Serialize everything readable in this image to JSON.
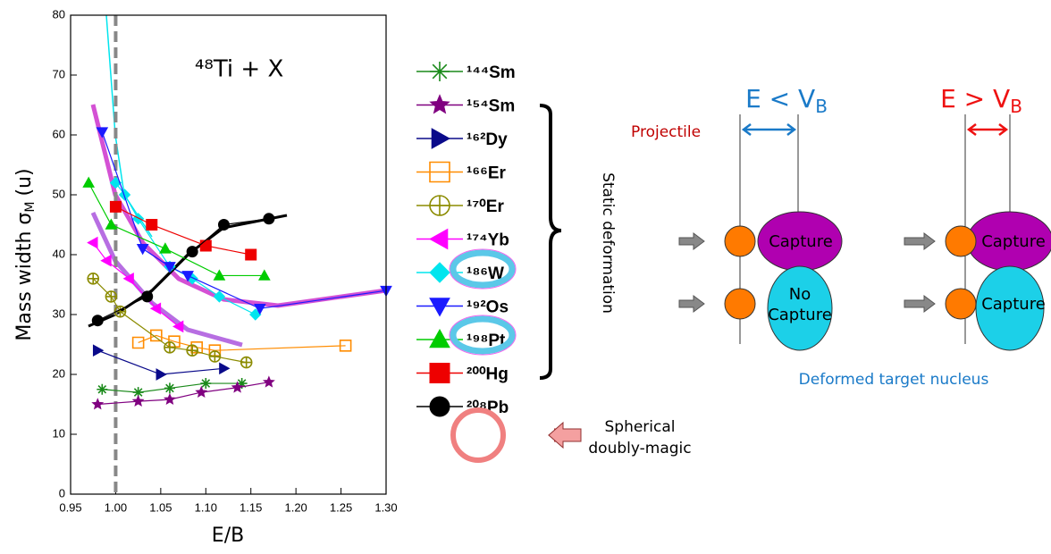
{
  "chart_data": {
    "type": "scatter",
    "title": "⁴⁸Ti + X",
    "xlabel": "E/B",
    "ylabel": {
      "text": "Mass width σ",
      "sub": "M",
      "unit": "(u)"
    },
    "xlim": [
      0.95,
      1.3
    ],
    "ylim": [
      0,
      80
    ],
    "xticks": [
      {
        "value": 0.95,
        "label": "0.95"
      },
      {
        "value": 1.0,
        "label": "1.00"
      },
      1.05,
      {
        "value": 1.1,
        "label": "1.10"
      },
      1.15,
      {
        "value": 1.2,
        "label": "1.20"
      },
      1.25,
      {
        "value": 1.3,
        "label": "1.30"
      }
    ],
    "yticks": [
      0,
      10,
      20,
      30,
      40,
      50,
      60,
      70,
      80
    ],
    "vline": 1.0,
    "series": [
      {
        "name": "¹⁴⁴Sm",
        "color": "#1a8a1a",
        "marker": "asterisk",
        "x": [
          0.985,
          1.025,
          1.06,
          1.1,
          1.14
        ],
        "values": [
          17.5,
          17,
          17.7,
          18.5,
          18.5
        ]
      },
      {
        "name": "¹⁵⁴Sm",
        "color": "#800080",
        "marker": "star",
        "x": [
          0.98,
          1.025,
          1.06,
          1.095,
          1.135,
          1.17
        ],
        "values": [
          15,
          15.5,
          15.8,
          17,
          17.8,
          18.7
        ]
      },
      {
        "name": "¹⁶²Dy",
        "color": "#0a0a8a",
        "marker": "triangle-right",
        "x": [
          0.98,
          1.05,
          1.12
        ],
        "values": [
          24,
          20,
          21
        ]
      },
      {
        "name": "¹⁶⁶Er",
        "color": "#ff8c00",
        "marker": "square-open",
        "x": [
          1.025,
          1.045,
          1.065,
          1.09,
          1.11,
          1.255
        ],
        "values": [
          25.3,
          26.5,
          25.5,
          24.5,
          24,
          24.8
        ]
      },
      {
        "name": "¹⁷⁰Er",
        "color": "#8b8b00",
        "marker": "circle-cross",
        "x": [
          0.975,
          0.995,
          1.005,
          1.06,
          1.085,
          1.11,
          1.145
        ],
        "values": [
          36,
          33,
          30.5,
          24.5,
          24,
          23,
          22
        ]
      },
      {
        "name": "¹⁷⁴Yb",
        "color": "#ff00ff",
        "marker": "triangle-left",
        "x": [
          0.975,
          0.99,
          1.015,
          1.045,
          1.07
        ],
        "values": [
          42,
          39,
          36,
          31,
          28
        ]
      },
      {
        "name": "¹⁸⁶W",
        "color": "#00e5ee",
        "marker": "diamond",
        "x": [
          1.0,
          1.01,
          1.025,
          1.06,
          1.085,
          1.115,
          1.155
        ],
        "values": [
          52,
          50,
          46,
          38,
          36,
          33,
          30
        ]
      },
      {
        "name": "¹⁹²Os",
        "color": "#1a1aff",
        "marker": "triangle-down",
        "x": [
          0.985,
          1.03,
          1.06,
          1.08,
          1.16,
          1.3
        ],
        "values": [
          60.5,
          41,
          38,
          36.5,
          31,
          34
        ]
      },
      {
        "name": "¹⁹⁸Pt",
        "color": "#00cc00",
        "marker": "triangle-up",
        "x": [
          0.97,
          0.995,
          1.055,
          1.115,
          1.165
        ],
        "values": [
          52,
          45,
          41,
          36.5,
          36.5
        ]
      },
      {
        "name": "²⁰⁰Hg",
        "color": "#ee0000",
        "marker": "square",
        "x": [
          1.0,
          1.04,
          1.1,
          1.15
        ],
        "values": [
          48,
          45,
          41.5,
          40
        ]
      },
      {
        "name": "²⁰⁸Pb",
        "color": "#000000",
        "marker": "circle",
        "x": [
          0.98,
          1.035,
          1.085,
          1.12,
          1.17
        ],
        "values": [
          29,
          33,
          40.5,
          45,
          46
        ]
      }
    ]
  },
  "legend_notes": {
    "static": "Static deformation",
    "spherical": [
      "Spherical",
      "doubly-magic"
    ]
  },
  "diagram": {
    "below": {
      "e": "E < V",
      "sub": "B"
    },
    "above": {
      "e": "E > V",
      "sub": "B"
    },
    "projectile": "Projectile",
    "capture_1": "Capture",
    "no_capture": [
      "No",
      "Capture"
    ],
    "capture_2": "Capture",
    "capture_3": "Capture",
    "target": "Deformed target nucleus"
  }
}
